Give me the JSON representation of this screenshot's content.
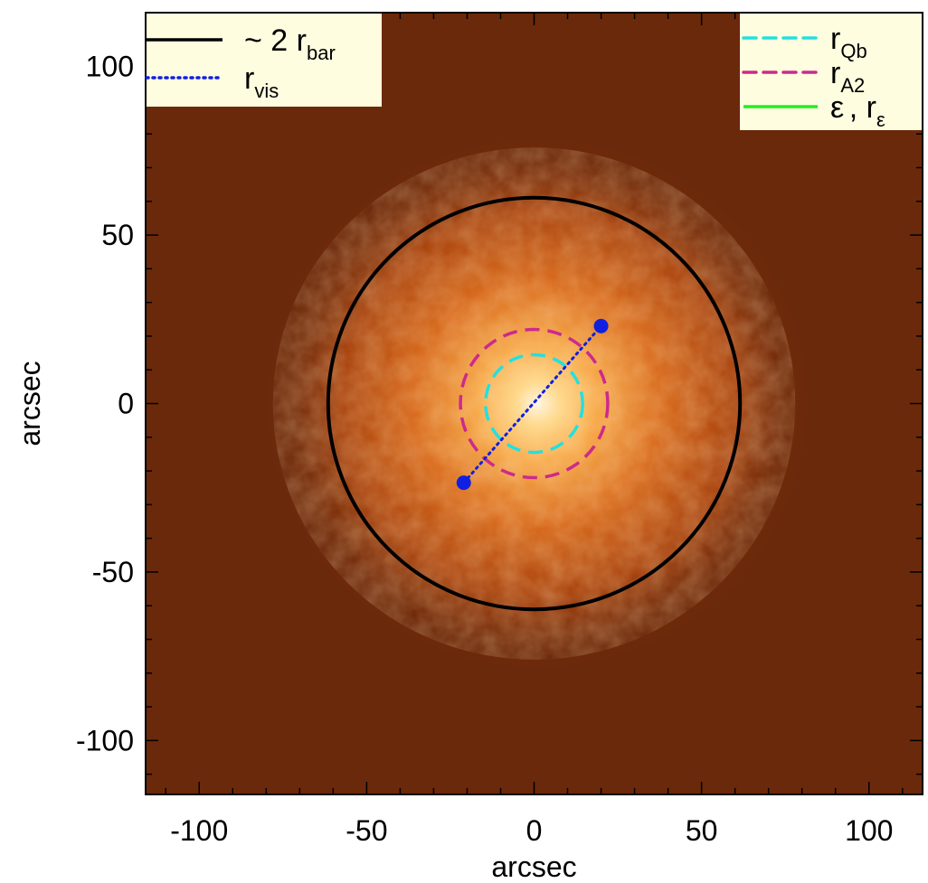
{
  "chart_data": {
    "type": "image",
    "xlabel": "arcsec",
    "ylabel": "arcsec",
    "xlim": [
      -116,
      116
    ],
    "ylim": [
      -116,
      116
    ],
    "x_ticks": [
      -100,
      -50,
      0,
      50,
      100
    ],
    "y_ticks": [
      -100,
      -50,
      0,
      50,
      100
    ],
    "x_tick_labels": [
      "-100",
      "-50",
      "0",
      "50",
      "100"
    ],
    "y_tick_labels": [
      "-100",
      "-50",
      "0",
      "50",
      "100"
    ],
    "background_color": "#6b290b",
    "colormap": [
      "#fff8e8",
      "#ffd98a",
      "#f7a94a",
      "#d86a1c",
      "#a9440f",
      "#6b290b"
    ],
    "overlays": {
      "bar_circle": {
        "radius": 61.5,
        "color": "#000000",
        "style": "solid"
      },
      "r_qb_ellipse": {
        "rx": 14.5,
        "ry": 14.5,
        "color": "#22e0e0",
        "style": "dashed"
      },
      "r_a2_ellipse": {
        "rx": 22,
        "ry": 22,
        "color": "#cc2a8c",
        "style": "dashed"
      },
      "r_vis_segment": {
        "x": [
          -21,
          20
        ],
        "y": [
          -23.5,
          23
        ],
        "color": "#1020e0",
        "style": "dotted",
        "marker": "filled-circle"
      }
    },
    "legends": {
      "left": {
        "placement": "top-left",
        "entries": [
          {
            "label_base": "~ 2 r",
            "label_sub": "bar",
            "color": "#000000",
            "style": "solid"
          },
          {
            "label_base": "r",
            "label_sub": "vis",
            "color": "#1020e0",
            "style": "dotted"
          }
        ]
      },
      "right": {
        "placement": "top-right",
        "entries": [
          {
            "label_base": "r",
            "label_sub": "Qb",
            "color": "#22e0e0",
            "style": "dashed"
          },
          {
            "label_base": "r",
            "label_sub": "A2",
            "color": "#cc2a8c",
            "style": "dashed"
          },
          {
            "label_base": "ε",
            "label_base2": ", r",
            "label_sub": "ε",
            "color": "#22ee22",
            "style": "solid"
          }
        ]
      }
    }
  }
}
